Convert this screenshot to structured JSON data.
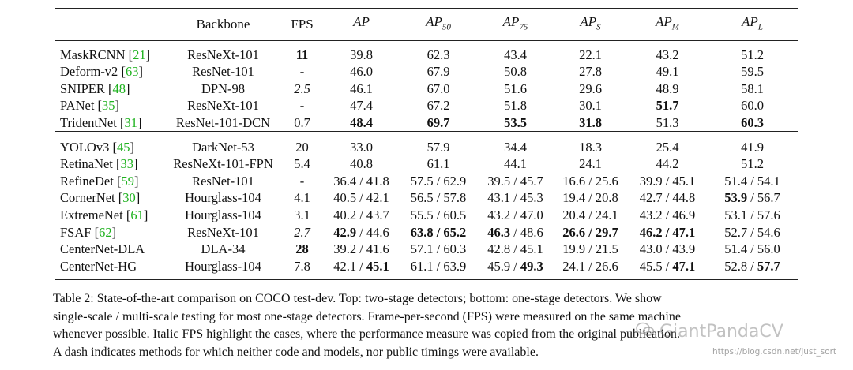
{
  "table": {
    "headers": {
      "method": "",
      "backbone": "Backbone",
      "fps": "FPS",
      "ap": {
        "base": "AP",
        "sub": ""
      },
      "ap50": {
        "base": "AP",
        "sub": "50"
      },
      "ap75": {
        "base": "AP",
        "sub": "75"
      },
      "aps": {
        "base": "AP",
        "sub": "S"
      },
      "apm": {
        "base": "AP",
        "sub": "M"
      },
      "apl": {
        "base": "AP",
        "sub": "L"
      }
    },
    "two_stage": [
      {
        "method": "MaskRCNN",
        "cite": "21",
        "backbone": "ResNeXt-101",
        "fps": "11",
        "ap": "39.8",
        "ap50": "62.3",
        "ap75": "43.4",
        "aps": "22.1",
        "apm": "43.2",
        "apl": "51.2"
      },
      {
        "method": "Deform-v2",
        "cite": "63",
        "backbone": "ResNet-101",
        "fps": "-",
        "ap": "46.0",
        "ap50": "67.9",
        "ap75": "50.8",
        "aps": "27.8",
        "apm": "49.1",
        "apl": "59.5"
      },
      {
        "method": "SNIPER",
        "cite": "48",
        "backbone": "DPN-98",
        "fps": "2.5",
        "ap": "46.1",
        "ap50": "67.0",
        "ap75": "51.6",
        "aps": "29.6",
        "apm": "48.9",
        "apl": "58.1"
      },
      {
        "method": "PANet",
        "cite": "35",
        "backbone": "ResNeXt-101",
        "fps": "-",
        "ap": "47.4",
        "ap50": "67.2",
        "ap75": "51.8",
        "aps": "30.1",
        "apm": "51.7",
        "apl": "60.0"
      },
      {
        "method": "TridentNet",
        "cite": "31",
        "backbone": "ResNet-101-DCN",
        "fps": "0.7",
        "ap": "48.4",
        "ap50": "69.7",
        "ap75": "53.5",
        "aps": "31.8",
        "apm": "51.3",
        "apl": "60.3"
      }
    ],
    "one_stage": [
      {
        "method": "YOLOv3",
        "cite": "45",
        "backbone": "DarkNet-53",
        "fps": "20",
        "ap": "33.0",
        "ap50": "57.9",
        "ap75": "34.4",
        "aps": "18.3",
        "apm": "25.4",
        "apl": "41.9"
      },
      {
        "method": "RetinaNet",
        "cite": "33",
        "backbone": "ResNeXt-101-FPN",
        "fps": "5.4",
        "ap": "40.8",
        "ap50": "61.1",
        "ap75": "44.1",
        "aps": "24.1",
        "apm": "44.2",
        "apl": "51.2"
      },
      {
        "method": "RefineDet",
        "cite": "59",
        "backbone": "ResNet-101",
        "fps": "-",
        "ap": "36.4 / 41.8",
        "ap50": "57.5 / 62.9",
        "ap75": "39.5 / 45.7",
        "aps": "16.6 / 25.6",
        "apm": "39.9 / 45.1",
        "apl": "51.4 / 54.1"
      },
      {
        "method": "CornerNet",
        "cite": "30",
        "backbone": "Hourglass-104",
        "fps": "4.1",
        "ap": "40.5 / 42.1",
        "ap50": "56.5 / 57.8",
        "ap75": "43.1 / 45.3",
        "aps": "19.4 / 20.8",
        "apm": "42.7 / 44.8",
        "apl_a": "53.9",
        "apl_b": "56.7"
      },
      {
        "method": "ExtremeNet",
        "cite": "61",
        "backbone": "Hourglass-104",
        "fps": "3.1",
        "ap": "40.2 / 43.7",
        "ap50": "55.5 / 60.5",
        "ap75": "43.2 / 47.0",
        "aps": "20.4 / 24.1",
        "apm": "43.2 / 46.9",
        "apl": "53.1 / 57.6"
      },
      {
        "method": "FSAF",
        "cite": "62",
        "backbone": "ResNeXt-101",
        "fps": "2.7",
        "ap_a": "42.9",
        "ap_b": "44.6",
        "ap50_a": "63.8",
        "ap50_b": "65.2",
        "ap75_a": "46.3",
        "ap75_b": "48.6",
        "aps_a": "26.6",
        "aps_b": "29.7",
        "apm_a": "46.2",
        "apm_b": "47.1",
        "apl": "52.7 / 54.6"
      },
      {
        "method": "CenterNet-DLA",
        "backbone": "DLA-34",
        "fps": "28",
        "ap": "39.2 / 41.6",
        "ap50": "57.1 / 60.3",
        "ap75": "42.8 / 45.1",
        "aps": "19.9 / 21.5",
        "apm": "43.0 / 43.9",
        "apl": "51.4 / 56.0"
      },
      {
        "method": "CenterNet-HG",
        "backbone": "Hourglass-104",
        "fps": "7.8",
        "ap_a": "42.1",
        "ap_b": "45.1",
        "ap50_a": "61.1",
        "ap50_b": "63.9",
        "ap75_a": "45.9",
        "ap75_b": "49.3",
        "aps": "24.1 / 26.6",
        "apm_a": "45.5",
        "apm_b": "47.1",
        "apl_a": "52.8",
        "apl_b": "57.7"
      }
    ]
  },
  "caption": {
    "lines": [
      "Table 2: State-of-the-art comparison on COCO test-dev. Top: two-stage detectors; bottom: one-stage detectors. We show",
      "single-scale / multi-scale testing for most one-stage detectors. Frame-per-second (FPS) were measured on the same machine",
      "whenever possible. Italic FPS highlight the cases, where the performance measure was copied from the original publication.",
      "A dash indicates methods for which neither code and models, nor public timings were available."
    ]
  },
  "watermark": {
    "brand": "GiantPandaCV",
    "url": "https://blog.csdn.net/just_sort",
    "brand_color": "#808080"
  },
  "colors": {
    "citation": "#1fb21f",
    "text": "#111111",
    "rule": "#222222"
  }
}
